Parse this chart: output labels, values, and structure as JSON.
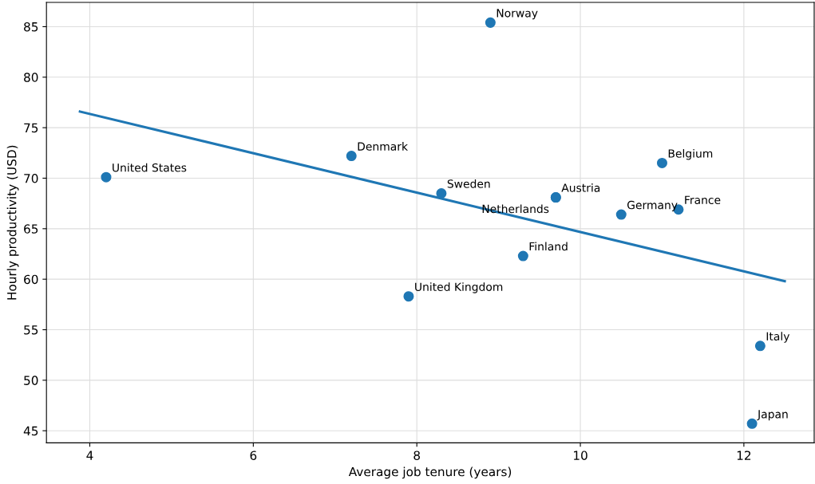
{
  "chart_data": {
    "type": "scatter",
    "xlabel": "Average job tenure (years)",
    "ylabel": "Hourly productivity (USD)",
    "xlim": [
      3.47,
      12.86
    ],
    "ylim": [
      43.8,
      87.4
    ],
    "xticks": [
      4,
      6,
      8,
      10,
      12
    ],
    "yticks": [
      45,
      50,
      55,
      60,
      65,
      70,
      75,
      80,
      85
    ],
    "grid": true,
    "series": [
      {
        "color": "#1f77b4",
        "marker": "circle",
        "x": [
          4.2,
          7.2,
          8.9,
          8.3,
          9.7,
          9.7,
          9.3,
          7.9,
          11.0,
          10.5,
          11.2,
          12.2,
          12.1
        ],
        "values": [
          70.1,
          72.2,
          85.4,
          68.5,
          68.1,
          68.1,
          62.3,
          58.3,
          71.5,
          66.4,
          66.9,
          53.4,
          45.7
        ]
      },
      {
        "type": "line",
        "color": "#1f77b4",
        "marker": "none",
        "x": [
          3.88,
          12.5
        ],
        "values": [
          76.6,
          59.8
        ]
      }
    ],
    "annotations": [
      {
        "text": "United States",
        "x": 4.2,
        "y": 70.1
      },
      {
        "text": "Denmark",
        "x": 7.2,
        "y": 72.2
      },
      {
        "text": "Norway",
        "x": 8.9,
        "y": 85.4
      },
      {
        "text": "Sweden",
        "x": 8.3,
        "y": 68.5
      },
      {
        "text": "Austria",
        "x": 9.7,
        "y": 68.1
      },
      {
        "text": "Netherlands",
        "x": 9.7,
        "y": 68.1
      },
      {
        "text": "Finland",
        "x": 9.3,
        "y": 62.3
      },
      {
        "text": "United Kingdom",
        "x": 7.9,
        "y": 58.3
      },
      {
        "text": "Belgium",
        "x": 11.0,
        "y": 71.5
      },
      {
        "text": "Germany",
        "x": 10.5,
        "y": 66.4
      },
      {
        "text": "France",
        "x": 11.2,
        "y": 66.9
      },
      {
        "text": "Italy",
        "x": 12.2,
        "y": 53.4
      },
      {
        "text": "Japan",
        "x": 12.1,
        "y": 45.7
      }
    ]
  }
}
